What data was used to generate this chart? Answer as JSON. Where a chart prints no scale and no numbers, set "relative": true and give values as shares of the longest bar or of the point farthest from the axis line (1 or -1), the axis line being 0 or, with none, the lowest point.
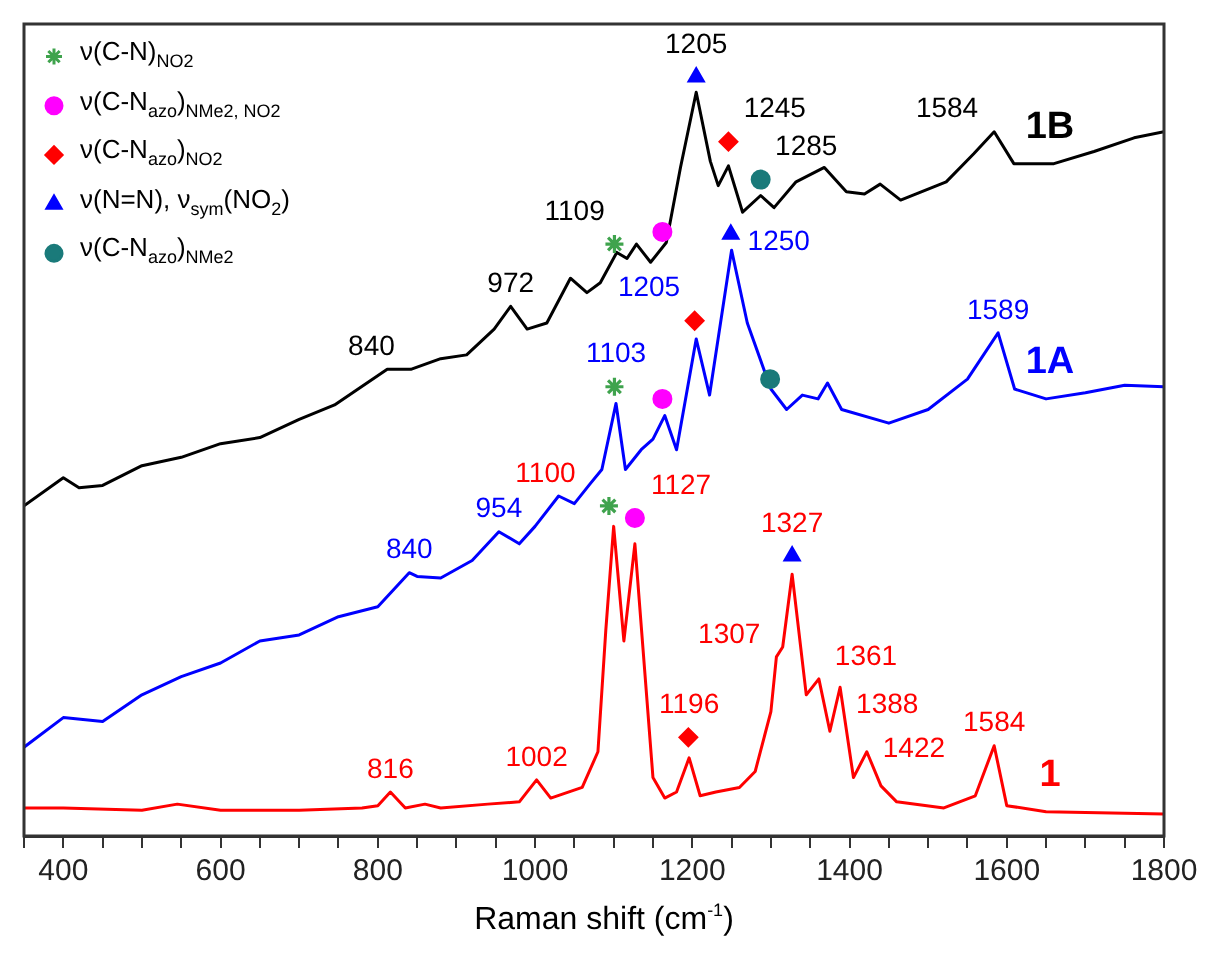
{
  "chart_data": {
    "type": "line",
    "relative": true,
    "xlabel": "Raman shift (cm$^{-1}$)",
    "xlim": [
      350,
      1800
    ],
    "xticks": [
      {
        "value": 350,
        "label": null
      },
      400,
      {
        "value": 450,
        "label": null
      },
      {
        "value": 500,
        "label": null
      },
      {
        "value": 550,
        "label": null
      },
      600,
      {
        "value": 650,
        "label": null
      },
      {
        "value": 700,
        "label": null
      },
      {
        "value": 750,
        "label": null
      },
      800,
      {
        "value": 850,
        "label": null
      },
      {
        "value": 900,
        "label": null
      },
      {
        "value": 950,
        "label": null
      },
      1000,
      {
        "value": 1050,
        "label": null
      },
      {
        "value": 1100,
        "label": null
      },
      {
        "value": 1150,
        "label": null
      },
      1200,
      {
        "value": 1250,
        "label": null
      },
      {
        "value": 1300,
        "label": null
      },
      {
        "value": 1350,
        "label": null
      },
      1400,
      {
        "value": 1450,
        "label": null
      },
      {
        "value": 1500,
        "label": null
      },
      {
        "value": 1550,
        "label": null
      },
      1600,
      {
        "value": 1650,
        "label": null
      },
      {
        "value": 1700,
        "label": null
      },
      {
        "value": 1750,
        "label": null
      },
      1800
    ],
    "grid": false,
    "legend": "top left",
    "line_style": "solid",
    "series": [
      {
        "name": "1",
        "color": "#ff0000",
        "x": [
          350,
          400,
          500,
          545,
          600,
          700,
          780,
          800,
          816,
          835,
          860,
          880,
          940,
          980,
          1002,
          1020,
          1060,
          1080,
          1090,
          1100,
          1113,
          1127,
          1150,
          1165,
          1180,
          1196,
          1210,
          1230,
          1260,
          1280,
          1300,
          1307,
          1315,
          1327,
          1345,
          1361,
          1375,
          1388,
          1405,
          1422,
          1440,
          1460,
          1520,
          1560,
          1584,
          1600,
          1650,
          1800
        ],
        "values": [
          0.037,
          0.037,
          0.034,
          0.042,
          0.034,
          0.034,
          0.037,
          0.04,
          0.058,
          0.037,
          0.042,
          0.037,
          0.042,
          0.045,
          0.074,
          0.05,
          0.064,
          0.111,
          0.271,
          0.408,
          0.257,
          0.385,
          0.077,
          0.05,
          0.058,
          0.103,
          0.053,
          0.058,
          0.064,
          0.085,
          0.164,
          0.236,
          0.249,
          0.345,
          0.186,
          0.207,
          0.138,
          0.196,
          0.077,
          0.111,
          0.066,
          0.045,
          0.037,
          0.053,
          0.119,
          0.04,
          0.032,
          0.029
        ]
      },
      {
        "name": "1A",
        "color": "#0000ff",
        "x": [
          350,
          400,
          450,
          500,
          550,
          600,
          650,
          700,
          750,
          800,
          840,
          850,
          880,
          920,
          954,
          980,
          1000,
          1030,
          1050,
          1070,
          1085,
          1103,
          1115,
          1135,
          1150,
          1165,
          1180,
          1205,
          1222,
          1250,
          1270,
          1300,
          1320,
          1340,
          1360,
          1372,
          1390,
          1450,
          1500,
          1550,
          1589,
          1610,
          1650,
          1700,
          1750,
          1800
        ],
        "values": [
          0.117,
          0.156,
          0.151,
          0.186,
          0.21,
          0.228,
          0.257,
          0.265,
          0.289,
          0.302,
          0.347,
          0.342,
          0.34,
          0.363,
          0.401,
          0.385,
          0.408,
          0.448,
          0.438,
          0.464,
          0.483,
          0.57,
          0.483,
          0.509,
          0.523,
          0.554,
          0.509,
          0.655,
          0.581,
          0.772,
          0.676,
          0.589,
          0.562,
          0.581,
          0.576,
          0.597,
          0.562,
          0.544,
          0.562,
          0.602,
          0.663,
          0.589,
          0.576,
          0.584,
          0.594,
          0.592
        ]
      },
      {
        "name": "1B",
        "color": "#000000",
        "x": [
          350,
          400,
          420,
          450,
          500,
          550,
          600,
          650,
          700,
          745,
          812,
          842,
          880,
          913,
          948,
          969,
          990,
          1015,
          1045,
          1066,
          1083,
          1104,
          1117,
          1129,
          1147,
          1167,
          1185,
          1205,
          1223,
          1233,
          1246,
          1264,
          1287,
          1304,
          1332,
          1368,
          1396,
          1419,
          1439,
          1465,
          1523,
          1558,
          1584,
          1609,
          1660,
          1711,
          1762,
          1800
        ],
        "values": [
          0.435,
          0.472,
          0.459,
          0.462,
          0.488,
          0.499,
          0.517,
          0.525,
          0.549,
          0.568,
          0.615,
          0.615,
          0.629,
          0.634,
          0.668,
          0.698,
          0.668,
          0.676,
          0.735,
          0.716,
          0.729,
          0.769,
          0.761,
          0.78,
          0.756,
          0.782,
          0.881,
          0.98,
          0.889,
          0.857,
          0.883,
          0.822,
          0.844,
          0.828,
          0.862,
          0.881,
          0.849,
          0.846,
          0.859,
          0.838,
          0.862,
          0.899,
          0.928,
          0.886,
          0.886,
          0.902,
          0.92,
          0.928
        ]
      },
      {
        "name": "ν(C-N)$_{NO2}$",
        "type": "scatter",
        "marker": "cross",
        "color": "#3fa34d",
        "x": [
          1101,
          1101,
          1094
        ],
        "values": [
          0.78,
          0.592,
          0.435
        ]
      },
      {
        "name": "ν(C-N$_{azo}$)$_{NMe2, NO2}$",
        "type": "scatter",
        "marker": "circle",
        "color": "#ff00ff",
        "x": [
          1162,
          1162,
          1127
        ],
        "values": [
          0.796,
          0.576,
          0.419
        ]
      },
      {
        "name": "ν(C-N$_{azo}$)$_{NO2}$",
        "type": "scatter",
        "marker": "diamond",
        "color": "#ff0000",
        "x": [
          1246,
          1203,
          1195
        ],
        "values": [
          0.915,
          0.679,
          0.13
        ]
      },
      {
        "name": "ν(N=N), ν$_{sym}$(NO$_{2}$)",
        "type": "scatter",
        "marker": "triangle",
        "color": "#0000ff",
        "x": [
          1205,
          1249,
          1327
        ],
        "values": [
          1.0,
          0.793,
          0.369
        ]
      },
      {
        "name": "ν(C-N$_{azo}$)$_{NMe2}$",
        "type": "scatter",
        "marker": "circle",
        "color": "#1a7a7a",
        "x": [
          1287,
          1299
        ],
        "values": [
          0.865,
          0.602
        ]
      }
    ],
    "annotations": [
      {
        "text": "840",
        "x": 842,
        "y": 0.615
      },
      {
        "text": "972",
        "x": 969,
        "y": 0.698
      },
      {
        "text": "1109",
        "x": 1109,
        "y": 0.768
      },
      {
        "text": "1205",
        "x": 1205,
        "y": 0.98
      },
      {
        "text": "1245",
        "x": 1245,
        "y": 0.883
      },
      {
        "text": "1285",
        "x": 1285,
        "y": 0.842
      },
      {
        "text": "1584",
        "x": 1584,
        "y": 0.928
      },
      {
        "text": "1103",
        "x": 1103,
        "y": 0.57
      },
      {
        "text": "1205",
        "x": 1205,
        "y": 0.655
      },
      {
        "text": "1250",
        "x": 1250,
        "y": 0.772
      },
      {
        "text": "1589",
        "x": 1589,
        "y": 0.663
      },
      {
        "text": "954",
        "x": 954,
        "y": 0.401
      },
      {
        "text": "840",
        "x": 840,
        "y": 0.347
      },
      {
        "text": "1100",
        "x": 1100,
        "y": 0.408
      },
      {
        "text": "1127",
        "x": 1127,
        "y": 0.385
      },
      {
        "text": "816",
        "x": 816,
        "y": 0.058
      },
      {
        "text": "1002",
        "x": 1002,
        "y": 0.074
      },
      {
        "text": "1196",
        "x": 1196,
        "y": 0.103
      },
      {
        "text": "1327",
        "x": 1327,
        "y": 0.345
      },
      {
        "text": "1307",
        "x": 1307,
        "y": 0.236
      },
      {
        "text": "1361",
        "x": 1361,
        "y": 0.207
      },
      {
        "text": "1388",
        "x": 1388,
        "y": 0.196
      },
      {
        "text": "1422",
        "x": 1422,
        "y": 0.111
      },
      {
        "text": "1584",
        "x": 1584,
        "y": 0.119
      }
    ]
  }
}
